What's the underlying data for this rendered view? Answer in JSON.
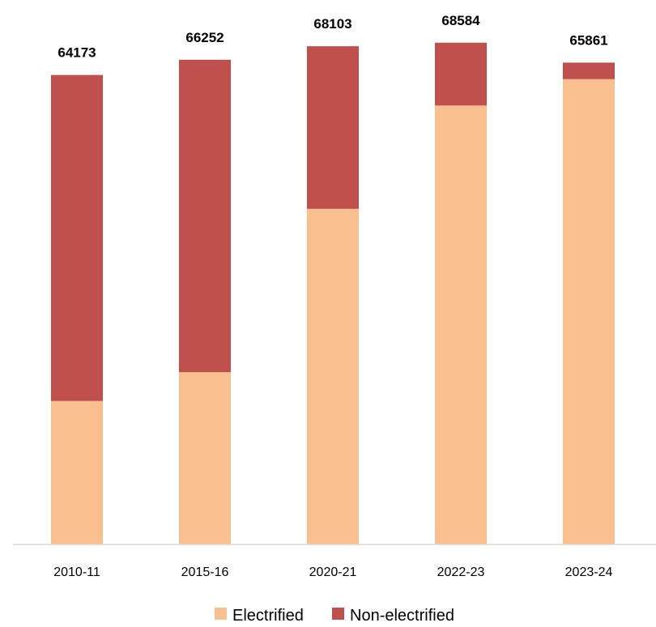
{
  "chart_data": {
    "type": "bar",
    "stacked": true,
    "categories": [
      "2010-11",
      "2015-16",
      "2020-21",
      "2022-23",
      "2023-24"
    ],
    "series": [
      {
        "name": "Electrified",
        "color": "#F9BF8F",
        "values": [
          19607,
          23555,
          45881,
          60000,
          63600
        ]
      },
      {
        "name": "Non-electrified",
        "color": "#C0504D",
        "values": [
          44566,
          42697,
          22222,
          8584,
          2261
        ]
      }
    ],
    "totals": [
      "64173",
      "66252",
      "68103",
      "68584",
      "65861"
    ],
    "ylim": [
      0,
      69000
    ],
    "grid": false,
    "legend_position": "bottom",
    "title": "",
    "xlabel": "",
    "ylabel": ""
  }
}
